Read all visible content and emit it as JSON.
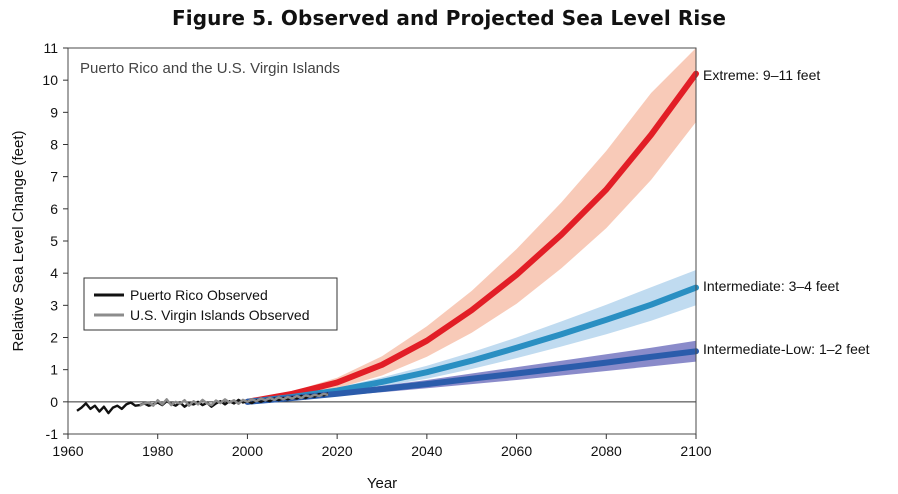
{
  "chart_data": {
    "type": "line",
    "title": "Figure 5. Observed and Projected Sea Level Rise",
    "panel_label": "Puerto Rico and the U.S. Virgin Islands",
    "xlabel": "Year",
    "ylabel": "Relative Sea Level Change (feet)",
    "xlim": [
      1960,
      2100
    ],
    "ylim": [
      -1,
      11
    ],
    "x_ticks": [
      1960,
      1980,
      2000,
      2020,
      2040,
      2060,
      2080,
      2100
    ],
    "y_ticks": [
      -1,
      0,
      1,
      2,
      3,
      4,
      5,
      6,
      7,
      8,
      9,
      10,
      11
    ],
    "grid": false,
    "legend": {
      "position": "lower-left",
      "entries": [
        {
          "label": "Puerto Rico Observed",
          "color": "#111111"
        },
        {
          "label": "U.S. Virgin Islands Observed",
          "color": "#8c8c8c"
        }
      ]
    },
    "observed": [
      {
        "name": "Puerto Rico Observed",
        "color": "#111111",
        "x": [
          1962,
          1963,
          1964,
          1965,
          1966,
          1967,
          1968,
          1969,
          1970,
          1971,
          1972,
          1973,
          1974,
          1975,
          1976,
          1977,
          1978,
          1979,
          1980,
          1981,
          1982,
          1983,
          1984,
          1985,
          1986,
          1987,
          1988,
          1989,
          1990,
          1991,
          1992,
          1993,
          1994,
          1995,
          1996,
          1997,
          1998,
          1999,
          2000,
          2001,
          2002,
          2003,
          2004,
          2005,
          2006,
          2007,
          2008,
          2009,
          2010,
          2011,
          2012,
          2013,
          2014,
          2015,
          2016,
          2017,
          2018
        ],
        "y": [
          -0.28,
          -0.18,
          -0.05,
          -0.22,
          -0.12,
          -0.3,
          -0.15,
          -0.35,
          -0.18,
          -0.12,
          -0.22,
          -0.08,
          -0.02,
          -0.12,
          -0.1,
          -0.05,
          -0.12,
          -0.08,
          -0.02,
          -0.1,
          0.02,
          -0.06,
          -0.12,
          -0.02,
          -0.15,
          -0.05,
          -0.08,
          0.0,
          -0.1,
          -0.03,
          -0.15,
          -0.05,
          0.02,
          -0.08,
          0.02,
          -0.05,
          0.06,
          -0.02,
          0.02,
          -0.04,
          0.05,
          0.0,
          0.06,
          0.02,
          0.1,
          0.05,
          0.12,
          0.08,
          0.14,
          0.1,
          0.18,
          0.12,
          0.2,
          0.16,
          0.24,
          0.2,
          0.26
        ]
      },
      {
        "name": "U.S. Virgin Islands Observed",
        "color": "#8c8c8c",
        "x": [
          1976,
          1977,
          1978,
          1979,
          1980,
          1981,
          1982,
          1983,
          1984,
          1985,
          1986,
          1987,
          1988,
          1989,
          1990,
          1991,
          1992,
          1993,
          1994,
          1995,
          1996,
          1997,
          1998,
          1999,
          2000,
          2001,
          2002,
          2003,
          2004,
          2005,
          2006,
          2007,
          2008,
          2009,
          2010,
          2011,
          2012,
          2013,
          2014,
          2015,
          2016,
          2017,
          2018
        ],
        "y": [
          -0.12,
          -0.05,
          -0.02,
          -0.12,
          0.05,
          -0.08,
          0.08,
          -0.1,
          0.0,
          -0.06,
          0.05,
          -0.12,
          0.02,
          -0.08,
          0.06,
          -0.05,
          -0.1,
          0.04,
          -0.04,
          0.08,
          -0.02,
          0.05,
          -0.06,
          0.06,
          0.0,
          0.08,
          0.02,
          0.1,
          0.05,
          0.12,
          0.06,
          0.14,
          0.08,
          0.15,
          0.1,
          0.18,
          0.12,
          0.2,
          0.16,
          0.22,
          0.18,
          0.25,
          0.22
        ]
      }
    ],
    "scenarios": [
      {
        "name": "Intermediate-Low",
        "label": "Intermediate-Low: 1–2 feet",
        "line_color": "#2b5cab",
        "band_color": "#7d7ec4",
        "x": [
          2000,
          2010,
          2020,
          2030,
          2040,
          2050,
          2060,
          2070,
          2080,
          2090,
          2100
        ],
        "y": [
          0,
          0.12,
          0.25,
          0.4,
          0.55,
          0.72,
          0.88,
          1.05,
          1.22,
          1.4,
          1.57
        ],
        "y_low": [
          0,
          0.08,
          0.18,
          0.3,
          0.42,
          0.55,
          0.68,
          0.82,
          0.96,
          1.1,
          1.25
        ],
        "y_high": [
          0,
          0.16,
          0.32,
          0.5,
          0.68,
          0.88,
          1.08,
          1.28,
          1.48,
          1.68,
          1.9
        ]
      },
      {
        "name": "Intermediate",
        "label": "Intermediate: 3–4 feet",
        "line_color": "#2a8fc2",
        "band_color": "#b9d7ee",
        "x": [
          2000,
          2010,
          2020,
          2030,
          2040,
          2050,
          2060,
          2070,
          2080,
          2090,
          2100
        ],
        "y": [
          0,
          0.15,
          0.35,
          0.62,
          0.92,
          1.28,
          1.68,
          2.1,
          2.55,
          3.02,
          3.55
        ],
        "y_low": [
          0,
          0.1,
          0.26,
          0.48,
          0.72,
          1.02,
          1.36,
          1.72,
          2.1,
          2.52,
          3.0
        ],
        "y_high": [
          0,
          0.2,
          0.44,
          0.76,
          1.12,
          1.54,
          2.0,
          2.5,
          3.02,
          3.56,
          4.1
        ]
      },
      {
        "name": "Extreme",
        "label": "Extreme: 9–11 feet",
        "line_color": "#e21e26",
        "band_color": "#f7c4b0",
        "x": [
          2000,
          2010,
          2020,
          2030,
          2040,
          2050,
          2060,
          2070,
          2080,
          2090,
          2100
        ],
        "y": [
          0,
          0.25,
          0.6,
          1.15,
          1.9,
          2.85,
          3.95,
          5.2,
          6.6,
          8.3,
          10.2
        ],
        "y_low": [
          0,
          0.18,
          0.42,
          0.82,
          1.4,
          2.15,
          3.05,
          4.15,
          5.4,
          6.9,
          8.7
        ],
        "y_high": [
          0,
          0.32,
          0.75,
          1.42,
          2.35,
          3.45,
          4.75,
          6.2,
          7.8,
          9.6,
          11.0
        ]
      }
    ]
  }
}
